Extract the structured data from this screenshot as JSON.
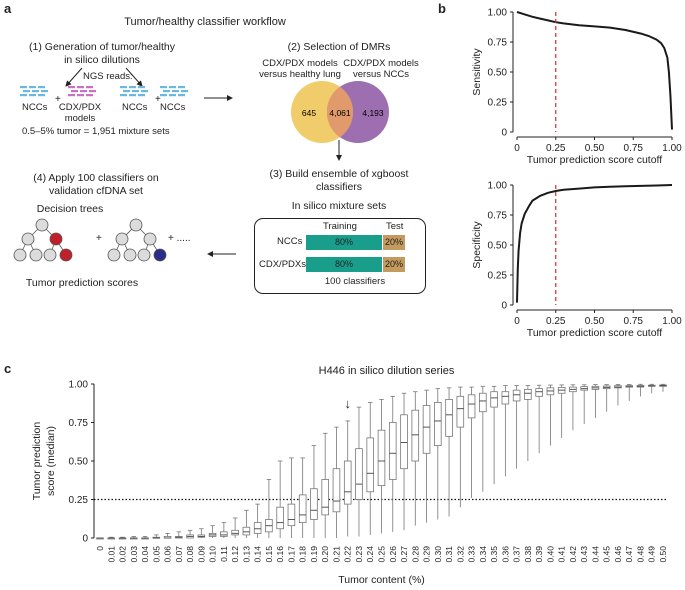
{
  "panels": {
    "a": "a",
    "b": "b",
    "c": "c"
  },
  "workflow": {
    "title": "Tumor/healthy classifier workflow",
    "step1": {
      "line1": "(1) Generation of tumor/healthy",
      "line2": "in silico dilutions"
    },
    "ngs_reads": "NGS reads:",
    "groupA": {
      "left": "NCCs",
      "right_line1": "CDX/PDX",
      "right_line2": "models",
      "plus": "+"
    },
    "groupB": {
      "left": "NCCs",
      "right": "NCCs",
      "plus": "+"
    },
    "mixture_note": "0.5–5% tumor = 1,951 mixture sets",
    "step2": "(2) Selection of DMRs",
    "venn": {
      "left_label_l1": "CDX/PDX models",
      "left_label_l2": "versus healthy lung",
      "right_label_l1": "CDX/PDX models",
      "right_label_l2": "versus NCCs",
      "left_only": "645",
      "overlap": "4,061",
      "right_only": "4,193",
      "left_color": "#f0cc6a",
      "right_color": "#9e6fb0",
      "overlap_color": "#e09a6c"
    },
    "step3": {
      "line1": "(3) Build ensemble of xgboost",
      "line2": "classifiers"
    },
    "mixture_sets": "In silico mixture sets",
    "box": {
      "training": "Training",
      "test": "Test",
      "rows": [
        {
          "label": "NCCs",
          "train": "80%",
          "test": "20%"
        },
        {
          "label": "CDX/PDXs",
          "train": "80%",
          "test": "20%"
        }
      ],
      "classifiers": "100 classifiers",
      "train_color": "#1a9e8c",
      "test_color": "#c49a5e"
    },
    "step4": {
      "line1": "(4) Apply 100 classifiers on",
      "line2": "validation cfDNA set"
    },
    "decision_trees": "Decision trees",
    "more": "+ .....",
    "plus": "+",
    "tumor_scores": "Tumor prediction scores",
    "read_colors": {
      "ncc": "#6ab8e0",
      "cdx": "#c96fc4"
    },
    "node_colors": {
      "grey": "#dcdcdc",
      "red": "#c0202a",
      "blue": "#2a2e8a"
    }
  },
  "chart_data": [
    {
      "type": "line",
      "ylabel": "Sensitivity",
      "xlabel": "Tumor prediction score cutoff",
      "xlim": [
        0,
        1
      ],
      "ylim": [
        0,
        1
      ],
      "xticks": [
        "0",
        "0.25",
        "0.50",
        "0.75",
        "1.00"
      ],
      "yticks": [
        "0",
        "0.25",
        "0.50",
        "0.75",
        "1.00"
      ],
      "x": [
        0,
        0.05,
        0.1,
        0.15,
        0.2,
        0.25,
        0.3,
        0.4,
        0.5,
        0.6,
        0.7,
        0.8,
        0.85,
        0.9,
        0.93,
        0.95,
        0.97,
        0.98,
        0.99,
        1.0
      ],
      "y": [
        1.0,
        0.98,
        0.96,
        0.945,
        0.93,
        0.915,
        0.905,
        0.89,
        0.88,
        0.87,
        0.85,
        0.82,
        0.8,
        0.77,
        0.74,
        0.7,
        0.62,
        0.5,
        0.3,
        0.02
      ],
      "cutoff": 0.25,
      "line_color": "#1a1a1a",
      "cutoff_color": "#d42b2b"
    },
    {
      "type": "line",
      "ylabel": "Specificity",
      "xlabel": "Tumor prediction score cutoff",
      "xlim": [
        0,
        1
      ],
      "ylim": [
        0,
        1
      ],
      "xticks": [
        "0",
        "0.25",
        "0.50",
        "0.75",
        "1.00"
      ],
      "yticks": [
        "0",
        "0.25",
        "0.50",
        "0.75",
        "1.00"
      ],
      "x": [
        0,
        0.005,
        0.01,
        0.02,
        0.03,
        0.05,
        0.08,
        0.1,
        0.15,
        0.2,
        0.25,
        0.3,
        0.4,
        0.5,
        0.6,
        0.7,
        0.8,
        0.9,
        1.0
      ],
      "y": [
        0.02,
        0.3,
        0.45,
        0.6,
        0.68,
        0.76,
        0.83,
        0.87,
        0.91,
        0.935,
        0.95,
        0.96,
        0.97,
        0.98,
        0.985,
        0.99,
        0.993,
        0.996,
        1.0
      ],
      "cutoff": 0.25,
      "line_color": "#1a1a1a",
      "cutoff_color": "#d42b2b"
    },
    {
      "type": "box",
      "title": "H446 in silico dilution series",
      "ylabel_l1": "Tumor prediction",
      "ylabel_l2": "score (median)",
      "xlabel": "Tumor content (%)",
      "ylim": [
        0,
        1
      ],
      "yticks": [
        "0",
        "0.25",
        "0.50",
        "0.75",
        "1.00"
      ],
      "threshold": 0.25,
      "arrow_category": "0.22",
      "arrow_glyph": "↓",
      "categories": [
        "0",
        "0.01",
        "0.02",
        "0.03",
        "0.04",
        "0.05",
        "0.06",
        "0.07",
        "0.08",
        "0.09",
        "0.10",
        "0.11",
        "0.12",
        "0.13",
        "0.14",
        "0.15",
        "0.16",
        "0.17",
        "0.18",
        "0.19",
        "0.20",
        "0.21",
        "0.22",
        "0.23",
        "0.24",
        "0.25",
        "0.26",
        "0.27",
        "0.28",
        "0.29",
        "0.30",
        "0.31",
        "0.32",
        "0.33",
        "0.34",
        "0.35",
        "0.36",
        "0.37",
        "0.38",
        "0.39",
        "0.40",
        "0.41",
        "0.42",
        "0.43",
        "0.44",
        "0.45",
        "0.46",
        "0.47",
        "0.48",
        "0.49",
        "0.50"
      ],
      "min": [
        0,
        0,
        0,
        0,
        0,
        0,
        0,
        0,
        0,
        0,
        0,
        0,
        0,
        0,
        0,
        0,
        0,
        0,
        0,
        0,
        0,
        0,
        0.01,
        0.01,
        0.02,
        0.03,
        0.04,
        0.05,
        0.08,
        0.1,
        0.12,
        0.14,
        0.2,
        0.26,
        0.3,
        0.35,
        0.4,
        0.45,
        0.5,
        0.55,
        0.6,
        0.65,
        0.7,
        0.74,
        0.78,
        0.82,
        0.86,
        0.89,
        0.92,
        0.94,
        0.95
      ],
      "q1": [
        0,
        0,
        0,
        0,
        0,
        0,
        0,
        0,
        0,
        0.005,
        0.01,
        0.01,
        0.02,
        0.02,
        0.03,
        0.04,
        0.06,
        0.08,
        0.1,
        0.12,
        0.15,
        0.17,
        0.22,
        0.25,
        0.3,
        0.34,
        0.38,
        0.45,
        0.5,
        0.55,
        0.6,
        0.66,
        0.72,
        0.78,
        0.82,
        0.85,
        0.87,
        0.89,
        0.9,
        0.92,
        0.93,
        0.94,
        0.95,
        0.96,
        0.965,
        0.97,
        0.975,
        0.98,
        0.98,
        0.985,
        0.985
      ],
      "median": [
        0,
        0,
        0,
        0,
        0,
        0,
        0,
        0.005,
        0.01,
        0.01,
        0.02,
        0.02,
        0.03,
        0.04,
        0.06,
        0.08,
        0.1,
        0.12,
        0.15,
        0.18,
        0.2,
        0.24,
        0.3,
        0.35,
        0.42,
        0.5,
        0.55,
        0.62,
        0.67,
        0.72,
        0.76,
        0.8,
        0.84,
        0.87,
        0.89,
        0.91,
        0.92,
        0.93,
        0.94,
        0.95,
        0.955,
        0.96,
        0.965,
        0.97,
        0.975,
        0.978,
        0.98,
        0.983,
        0.985,
        0.987,
        0.99
      ],
      "q3": [
        0,
        0,
        0,
        0,
        0,
        0.005,
        0.01,
        0.01,
        0.02,
        0.02,
        0.03,
        0.04,
        0.05,
        0.07,
        0.1,
        0.12,
        0.2,
        0.22,
        0.28,
        0.32,
        0.38,
        0.45,
        0.5,
        0.58,
        0.65,
        0.7,
        0.75,
        0.8,
        0.83,
        0.86,
        0.88,
        0.9,
        0.92,
        0.93,
        0.94,
        0.95,
        0.95,
        0.96,
        0.965,
        0.97,
        0.975,
        0.978,
        0.98,
        0.983,
        0.985,
        0.987,
        0.989,
        0.99,
        0.991,
        0.992,
        0.993
      ],
      "max": [
        0,
        0.005,
        0.005,
        0.01,
        0.01,
        0.02,
        0.03,
        0.04,
        0.05,
        0.06,
        0.08,
        0.1,
        0.13,
        0.18,
        0.22,
        0.38,
        0.5,
        0.52,
        0.52,
        0.6,
        0.68,
        0.72,
        0.76,
        0.85,
        0.88,
        0.9,
        0.92,
        0.94,
        0.95,
        0.96,
        0.97,
        0.975,
        0.98,
        0.98,
        0.985,
        0.985,
        0.99,
        0.99,
        0.99,
        0.992,
        0.993,
        0.994,
        0.995,
        0.995,
        0.996,
        0.996,
        0.997,
        0.997,
        0.998,
        0.998,
        0.998
      ]
    }
  ]
}
